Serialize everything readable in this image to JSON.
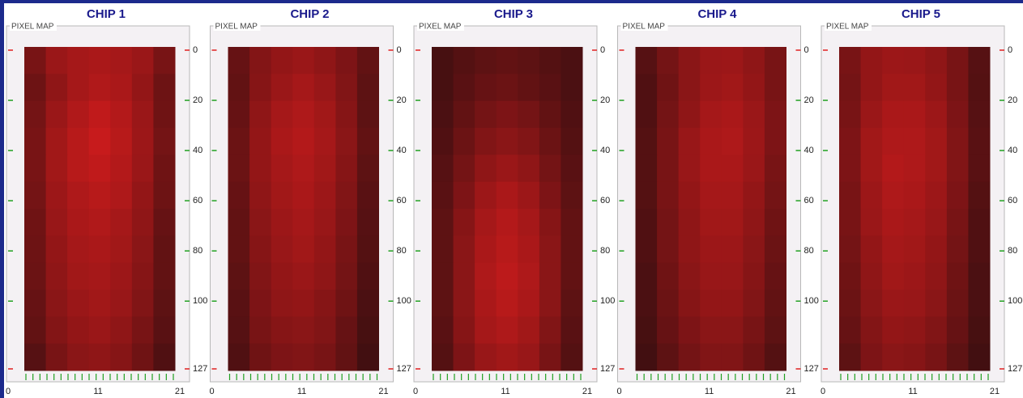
{
  "chart_data": [
    {
      "type": "heatmap",
      "title": "CHIP 1",
      "frame_label": "PIXEL MAP",
      "colors": [
        "#1e0c0e",
        "#ff2020"
      ],
      "zlim": [
        0,
        100
      ],
      "ylim": [
        0,
        127
      ],
      "yticks": [
        0,
        20,
        40,
        60,
        80,
        100,
        127
      ],
      "xlim": [
        0,
        21
      ],
      "xticks": [
        0,
        11,
        21
      ],
      "values": [
        [
          40,
          55,
          60,
          62,
          60,
          55,
          40
        ],
        [
          35,
          50,
          60,
          65,
          62,
          52,
          35
        ],
        [
          38,
          55,
          65,
          72,
          66,
          55,
          36
        ],
        [
          40,
          58,
          68,
          75,
          68,
          56,
          38
        ],
        [
          40,
          58,
          68,
          72,
          66,
          55,
          36
        ],
        [
          38,
          56,
          64,
          68,
          64,
          52,
          35
        ],
        [
          36,
          54,
          62,
          65,
          60,
          50,
          32
        ],
        [
          35,
          52,
          60,
          62,
          58,
          48,
          30
        ],
        [
          34,
          50,
          58,
          60,
          56,
          46,
          30
        ],
        [
          32,
          48,
          55,
          58,
          54,
          44,
          28
        ],
        [
          30,
          45,
          52,
          55,
          50,
          40,
          26
        ],
        [
          25,
          40,
          48,
          50,
          46,
          36,
          22
        ]
      ]
    },
    {
      "type": "heatmap",
      "title": "CHIP 2",
      "frame_label": "PIXEL MAP",
      "colors": [
        "#1e0c0e",
        "#ff2020"
      ],
      "zlim": [
        0,
        100
      ],
      "ylim": [
        0,
        127
      ],
      "yticks": [
        0,
        20,
        40,
        60,
        80,
        100,
        127
      ],
      "xlim": [
        0,
        21
      ],
      "xticks": [
        0,
        11,
        21
      ],
      "values": [
        [
          32,
          45,
          52,
          55,
          50,
          42,
          30
        ],
        [
          30,
          46,
          55,
          60,
          54,
          44,
          28
        ],
        [
          32,
          50,
          60,
          64,
          58,
          46,
          28
        ],
        [
          34,
          52,
          62,
          66,
          60,
          48,
          30
        ],
        [
          34,
          52,
          60,
          64,
          58,
          46,
          28
        ],
        [
          32,
          50,
          58,
          62,
          56,
          44,
          26
        ],
        [
          30,
          48,
          56,
          60,
          54,
          42,
          25
        ],
        [
          30,
          46,
          54,
          58,
          52,
          40,
          24
        ],
        [
          28,
          44,
          52,
          55,
          50,
          38,
          22
        ],
        [
          26,
          42,
          50,
          52,
          46,
          36,
          20
        ],
        [
          25,
          40,
          46,
          48,
          44,
          32,
          18
        ],
        [
          22,
          36,
          42,
          44,
          40,
          30,
          16
        ]
      ]
    },
    {
      "type": "heatmap",
      "title": "CHIP 3",
      "frame_label": "PIXEL MAP",
      "colors": [
        "#1e0c0e",
        "#ff2020"
      ],
      "zlim": [
        0,
        100
      ],
      "ylim": [
        0,
        127
      ],
      "yticks": [
        0,
        20,
        40,
        60,
        80,
        100,
        127
      ],
      "xlim": [
        0,
        21
      ],
      "xticks": [
        0,
        11,
        21
      ],
      "values": [
        [
          18,
          24,
          28,
          30,
          28,
          24,
          20
        ],
        [
          18,
          26,
          32,
          34,
          30,
          26,
          20
        ],
        [
          20,
          30,
          38,
          42,
          38,
          30,
          22
        ],
        [
          22,
          34,
          44,
          48,
          44,
          34,
          24
        ],
        [
          25,
          38,
          50,
          55,
          50,
          38,
          26
        ],
        [
          26,
          42,
          56,
          62,
          56,
          42,
          28
        ],
        [
          28,
          46,
          60,
          66,
          60,
          46,
          30
        ],
        [
          28,
          48,
          62,
          68,
          62,
          48,
          30
        ],
        [
          28,
          48,
          64,
          70,
          64,
          48,
          30
        ],
        [
          28,
          48,
          62,
          68,
          62,
          48,
          28
        ],
        [
          26,
          46,
          60,
          64,
          58,
          44,
          26
        ],
        [
          24,
          42,
          54,
          58,
          54,
          40,
          24
        ]
      ]
    },
    {
      "type": "heatmap",
      "title": "CHIP 4",
      "frame_label": "PIXEL MAP",
      "colors": [
        "#1e0c0e",
        "#ff2020"
      ],
      "zlim": [
        0,
        100
      ],
      "ylim": [
        0,
        127
      ],
      "yticks": [
        0,
        20,
        40,
        60,
        80,
        100,
        127
      ],
      "xlim": [
        0,
        21
      ],
      "xticks": [
        0,
        11,
        21
      ],
      "values": [
        [
          25,
          38,
          48,
          55,
          56,
          50,
          40
        ],
        [
          22,
          36,
          48,
          56,
          58,
          52,
          40
        ],
        [
          22,
          38,
          50,
          60,
          62,
          55,
          42
        ],
        [
          24,
          40,
          54,
          62,
          64,
          56,
          42
        ],
        [
          24,
          40,
          54,
          62,
          62,
          55,
          40
        ],
        [
          24,
          40,
          52,
          60,
          60,
          52,
          38
        ],
        [
          22,
          38,
          50,
          58,
          58,
          50,
          36
        ],
        [
          22,
          38,
          50,
          56,
          56,
          48,
          34
        ],
        [
          20,
          36,
          48,
          54,
          54,
          46,
          32
        ],
        [
          20,
          34,
          46,
          52,
          52,
          44,
          30
        ],
        [
          18,
          32,
          42,
          48,
          48,
          40,
          28
        ],
        [
          16,
          28,
          38,
          44,
          44,
          36,
          24
        ]
      ]
    },
    {
      "type": "heatmap",
      "title": "CHIP 5",
      "frame_label": "PIXEL MAP",
      "colors": [
        "#1e0c0e",
        "#ff2020"
      ],
      "zlim": [
        0,
        100
      ],
      "ylim": [
        0,
        127
      ],
      "yticks": [
        0,
        20,
        40,
        60,
        80,
        100,
        127
      ],
      "xlim": [
        0,
        21
      ],
      "xticks": [
        0,
        11,
        21
      ],
      "values": [
        [
          40,
          52,
          56,
          55,
          50,
          40,
          25
        ],
        [
          38,
          52,
          58,
          58,
          52,
          40,
          24
        ],
        [
          40,
          55,
          62,
          62,
          56,
          42,
          25
        ],
        [
          42,
          58,
          64,
          64,
          58,
          44,
          26
        ],
        [
          42,
          58,
          66,
          64,
          58,
          44,
          26
        ],
        [
          40,
          56,
          64,
          62,
          56,
          42,
          24
        ],
        [
          40,
          55,
          62,
          60,
          54,
          40,
          22
        ],
        [
          38,
          52,
          60,
          58,
          52,
          38,
          22
        ],
        [
          36,
          50,
          58,
          56,
          50,
          36,
          20
        ],
        [
          34,
          48,
          55,
          54,
          48,
          34,
          20
        ],
        [
          32,
          45,
          52,
          50,
          44,
          32,
          18
        ],
        [
          28,
          42,
          48,
          46,
          40,
          28,
          16
        ]
      ]
    }
  ]
}
